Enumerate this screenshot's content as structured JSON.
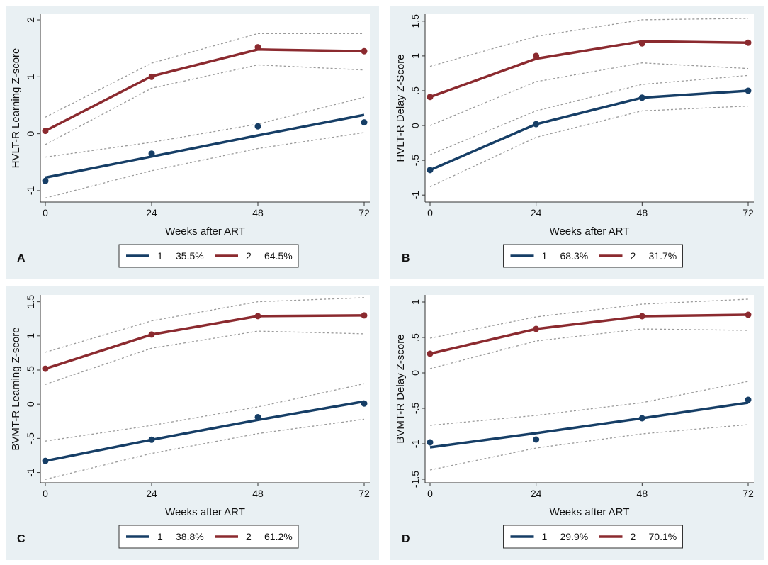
{
  "colors": {
    "panel_bg": "#e9f0f3",
    "plot_bg": "#ffffff",
    "class1": "#163e66",
    "class2": "#8b2a2f",
    "ci": "#9a9a9a"
  },
  "chart_data": [
    {
      "type": "line",
      "panel_letter": "A",
      "xlabel": "Weeks after ART",
      "ylabel": "HVLT-R Learning Z-score",
      "x": [
        0,
        24,
        48,
        72
      ],
      "xticks": [
        "0",
        "24",
        "48",
        "72"
      ],
      "ylim": [
        -1.2,
        2.1
      ],
      "yticks": [
        {
          "v": -1,
          "label": "-1"
        },
        {
          "v": 0,
          "label": "0"
        },
        {
          "v": 1,
          "label": "1"
        },
        {
          "v": 2,
          "label": "2"
        }
      ],
      "series": [
        {
          "name": "1",
          "share": "35.5%",
          "fit": [
            -0.77,
            -0.4,
            -0.03,
            0.33
          ],
          "observed": [
            -0.83,
            -0.35,
            0.13,
            0.2
          ],
          "ci_upper": [
            -0.41,
            -0.15,
            0.17,
            0.64
          ],
          "ci_lower": [
            -1.13,
            -0.65,
            -0.26,
            0.02
          ]
        },
        {
          "name": "2",
          "share": "64.5%",
          "fit": [
            0.05,
            1.01,
            1.48,
            1.45
          ],
          "observed": [
            0.05,
            1.0,
            1.52,
            1.45
          ],
          "ci_upper": [
            0.29,
            1.24,
            1.76,
            1.76
          ],
          "ci_lower": [
            -0.19,
            0.8,
            1.21,
            1.12
          ]
        }
      ]
    },
    {
      "type": "line",
      "panel_letter": "B",
      "xlabel": "Weeks after ART",
      "ylabel": "HVLT-R Delay Z-Score",
      "x": [
        0,
        24,
        48,
        72
      ],
      "xticks": [
        "0",
        "24",
        "48",
        "72"
      ],
      "ylim": [
        -1.1,
        1.6
      ],
      "yticks": [
        {
          "v": -1,
          "label": "-1"
        },
        {
          "v": -0.5,
          "label": "-.5"
        },
        {
          "v": 0,
          "label": "0"
        },
        {
          "v": 0.5,
          "label": ".5"
        },
        {
          "v": 1,
          "label": "1"
        },
        {
          "v": 1.5,
          "label": "1.5"
        }
      ],
      "series": [
        {
          "name": "1",
          "share": "68.3%",
          "fit": [
            -0.64,
            0.02,
            0.4,
            0.5
          ],
          "observed": [
            -0.64,
            0.02,
            0.4,
            0.5
          ],
          "ci_upper": [
            -0.42,
            0.21,
            0.59,
            0.72
          ],
          "ci_lower": [
            -0.88,
            -0.17,
            0.21,
            0.28
          ]
        },
        {
          "name": "2",
          "share": "31.7%",
          "fit": [
            0.41,
            0.96,
            1.21,
            1.19
          ],
          "observed": [
            0.41,
            1.0,
            1.18,
            1.19
          ],
          "ci_upper": [
            0.85,
            1.28,
            1.52,
            1.54
          ],
          "ci_lower": [
            0.0,
            0.63,
            0.9,
            0.82
          ]
        }
      ]
    },
    {
      "type": "line",
      "panel_letter": "C",
      "xlabel": "Weeks after ART",
      "ylabel": "BVMT-R Learning Z-score",
      "x": [
        0,
        24,
        48,
        72
      ],
      "xticks": [
        "0",
        "24",
        "48",
        "72"
      ],
      "ylim": [
        -1.15,
        1.6
      ],
      "yticks": [
        {
          "v": -1,
          "label": "-1"
        },
        {
          "v": -0.5,
          "label": "-.5"
        },
        {
          "v": 0,
          "label": "0"
        },
        {
          "v": 0.5,
          "label": ".5"
        },
        {
          "v": 1,
          "label": "1"
        },
        {
          "v": 1.5,
          "label": "1.5"
        }
      ],
      "series": [
        {
          "name": "1",
          "share": "38.8%",
          "fit": [
            -0.83,
            -0.52,
            -0.23,
            0.04
          ],
          "observed": [
            -0.83,
            -0.52,
            -0.19,
            0.01
          ],
          "ci_upper": [
            -0.54,
            -0.31,
            -0.04,
            0.3
          ],
          "ci_lower": [
            -1.1,
            -0.72,
            -0.43,
            -0.22
          ]
        },
        {
          "name": "2",
          "share": "61.2%",
          "fit": [
            0.52,
            1.02,
            1.29,
            1.3
          ],
          "observed": [
            0.52,
            1.02,
            1.29,
            1.3
          ],
          "ci_upper": [
            0.76,
            1.22,
            1.5,
            1.56
          ],
          "ci_lower": [
            0.29,
            0.82,
            1.07,
            1.03
          ]
        }
      ]
    },
    {
      "type": "line",
      "panel_letter": "D",
      "xlabel": "Weeks after ART",
      "ylabel": "BVMT-R Delay Z-score",
      "x": [
        0,
        24,
        48,
        72
      ],
      "xticks": [
        "0",
        "24",
        "48",
        "72"
      ],
      "ylim": [
        -1.55,
        1.1
      ],
      "yticks": [
        {
          "v": -1.5,
          "label": "-1.5"
        },
        {
          "v": -1,
          "label": "-1"
        },
        {
          "v": -0.5,
          "label": "-.5"
        },
        {
          "v": 0,
          "label": "0"
        },
        {
          "v": 0.5,
          "label": ".5"
        },
        {
          "v": 1,
          "label": "1"
        }
      ],
      "series": [
        {
          "name": "1",
          "share": "29.9%",
          "fit": [
            -1.05,
            -0.85,
            -0.64,
            -0.42
          ],
          "observed": [
            -0.98,
            -0.94,
            -0.64,
            -0.38
          ],
          "ci_upper": [
            -0.74,
            -0.6,
            -0.42,
            -0.12
          ],
          "ci_lower": [
            -1.37,
            -1.06,
            -0.86,
            -0.73
          ]
        },
        {
          "name": "2",
          "share": "70.1%",
          "fit": [
            0.27,
            0.62,
            0.8,
            0.82
          ],
          "observed": [
            0.27,
            0.62,
            0.8,
            0.82
          ],
          "ci_upper": [
            0.49,
            0.79,
            0.97,
            1.04
          ],
          "ci_lower": [
            0.06,
            0.45,
            0.62,
            0.6
          ]
        }
      ]
    }
  ]
}
